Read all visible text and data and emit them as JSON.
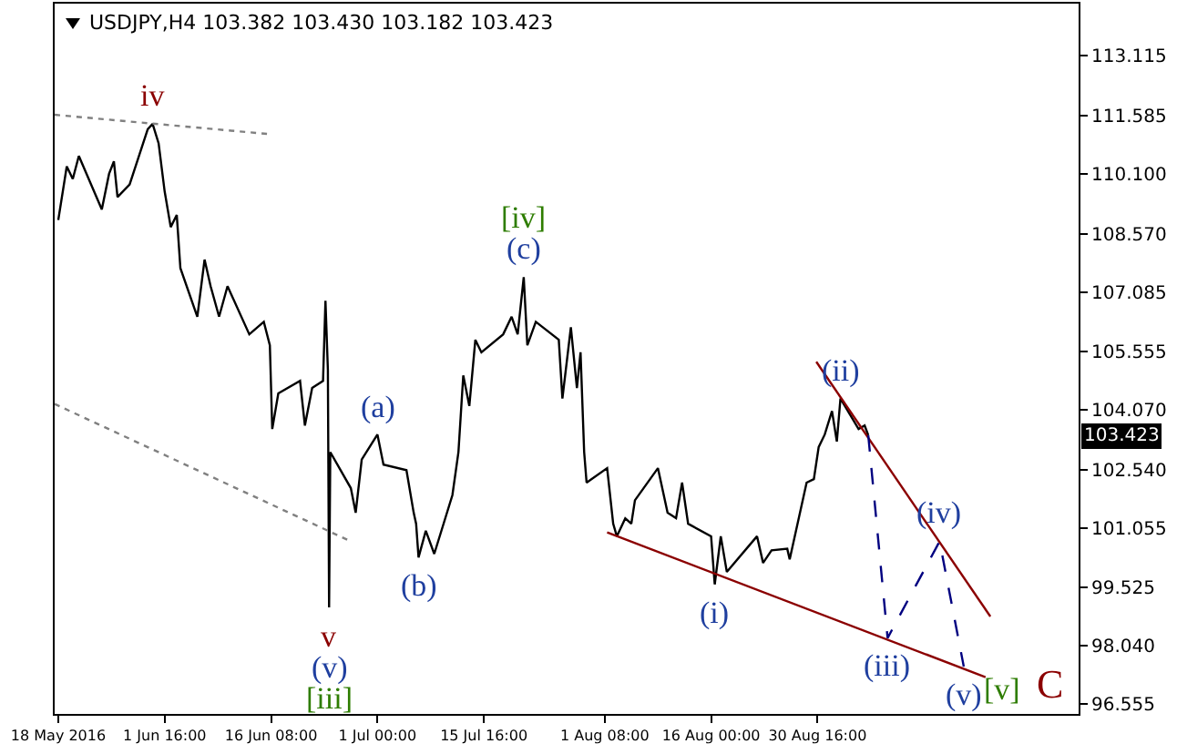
{
  "chart_data": {
    "type": "line",
    "title": "USDJPY,H4  103.382 103.430 103.182 103.423",
    "xlim": [
      "2016-05-17T12:00",
      "2016-10-05T16:00"
    ],
    "ylim": [
      96.3,
      114.45
    ],
    "xticks": [
      {
        "value": "2016-05-18T00:00",
        "label": "18 May 2016"
      },
      {
        "value": "2016-06-01T16:00",
        "label": "1 Jun 16:00"
      },
      {
        "value": "2016-06-16T08:00",
        "label": "16 Jun 08:00"
      },
      {
        "value": "2016-07-01T00:00",
        "label": "1 Jul 00:00"
      },
      {
        "value": "2016-07-15T16:00",
        "label": "15 Jul 16:00"
      },
      {
        "value": "2016-08-01T08:00",
        "label": "1 Aug 08:00"
      },
      {
        "value": "2016-08-16T00:00",
        "label": "16 Aug 00:00"
      },
      {
        "value": "2016-08-30T16:00",
        "label": "30 Aug 16:00"
      }
    ],
    "yticks": [
      {
        "value": 96.555,
        "label": "96.555"
      },
      {
        "value": 98.04,
        "label": "98.040"
      },
      {
        "value": 99.525,
        "label": "99.525"
      },
      {
        "value": 101.055,
        "label": "101.055"
      },
      {
        "value": 102.54,
        "label": "102.540"
      },
      {
        "value": 104.07,
        "label": "104.070"
      },
      {
        "value": 105.555,
        "label": "105.555"
      },
      {
        "value": 107.085,
        "label": "107.085"
      },
      {
        "value": 108.57,
        "label": "108.570"
      },
      {
        "value": 110.1,
        "label": "110.100"
      },
      {
        "value": 111.585,
        "label": "111.585"
      },
      {
        "value": 113.115,
        "label": "113.115"
      }
    ],
    "grid": false,
    "marker": "none",
    "series": [
      {
        "color": "#000000",
        "line_style": "solid",
        "x": [
          "2016-05-18T00:00",
          "2016-05-19T04:00",
          "2016-05-20T00:00",
          "2016-05-20T20:00",
          "2016-05-24T00:00",
          "2016-05-25T00:00",
          "2016-05-25T16:00",
          "2016-05-26T04:00",
          "2016-05-27T20:00",
          "2016-05-30T08:00",
          "2016-05-31T00:00",
          "2016-05-31T20:00",
          "2016-06-01T16:00",
          "2016-06-02T12:00",
          "2016-06-03T08:00",
          "2016-06-03T12:00",
          "2016-06-03T20:00",
          "2016-06-06T04:00",
          "2016-06-07T04:00",
          "2016-06-08T00:00",
          "2016-06-09T04:00",
          "2016-06-10T08:00",
          "2016-06-13T08:00",
          "2016-06-15T08:00",
          "2016-06-16T04:00",
          "2016-06-16T12:00",
          "2016-06-17T08:00",
          "2016-06-20T08:00",
          "2016-06-21T00:00",
          "2016-06-22T00:00",
          "2016-06-23T12:00",
          "2016-06-23T20:00",
          "2016-06-24T04:00",
          "2016-06-24T08:00",
          "2016-06-24T12:00",
          "2016-06-27T08:00",
          "2016-06-28T00:00",
          "2016-06-28T20:00",
          "2016-07-01T00:00",
          "2016-07-01T20:00",
          "2016-07-05T00:00",
          "2016-07-06T00:00",
          "2016-07-06T08:00",
          "2016-07-06T16:00",
          "2016-07-07T16:00",
          "2016-07-08T20:00",
          "2016-07-11T08:00",
          "2016-07-12T04:00",
          "2016-07-12T20:00",
          "2016-07-13T16:00",
          "2016-07-14T12:00",
          "2016-07-15T08:00",
          "2016-07-18T08:00",
          "2016-07-19T12:00",
          "2016-07-20T08:00",
          "2016-07-21T04:00",
          "2016-07-21T16:00",
          "2016-07-22T20:00",
          "2016-07-26T00:00",
          "2016-07-26T12:00",
          "2016-07-27T16:00",
          "2016-07-28T12:00",
          "2016-07-29T00:00",
          "2016-07-29T12:00",
          "2016-07-29T20:00",
          "2016-08-01T16:00",
          "2016-08-02T12:00",
          "2016-08-03T00:00",
          "2016-08-04T04:00",
          "2016-08-05T00:00",
          "2016-08-05T12:00",
          "2016-08-08T16:00",
          "2016-08-10T00:00",
          "2016-08-11T04:00",
          "2016-08-12T00:00",
          "2016-08-12T20:00",
          "2016-08-16T00:00",
          "2016-08-16T12:00",
          "2016-08-17T08:00",
          "2016-08-18T04:00",
          "2016-08-22T08:00",
          "2016-08-23T04:00",
          "2016-08-24T08:00",
          "2016-08-26T12:00",
          "2016-08-26T20:00",
          "2016-08-29T04:00",
          "2016-08-30T04:00",
          "2016-08-30T20:00",
          "2016-08-31T16:00",
          "2016-09-01T16:00",
          "2016-09-02T08:00",
          "2016-09-02T20:00",
          "2016-09-05T08:00",
          "2016-09-06T04:00",
          "2016-09-06T16:00"
        ],
        "values": [
          108.92,
          110.29,
          109.97,
          110.56,
          109.19,
          110.1,
          110.42,
          109.51,
          109.83,
          111.24,
          111.38,
          110.88,
          109.65,
          108.74,
          109.05,
          108.6,
          107.69,
          106.45,
          107.91,
          107.23,
          106.45,
          107.23,
          106.0,
          106.32,
          105.72,
          103.58,
          104.49,
          104.81,
          103.67,
          104.63,
          104.81,
          106.86,
          105.09,
          99.02,
          102.99,
          102.07,
          101.44,
          102.8,
          103.44,
          102.67,
          102.53,
          101.44,
          101.16,
          100.3,
          100.98,
          100.39,
          101.89,
          102.99,
          104.95,
          104.17,
          105.86,
          105.54,
          106.0,
          106.45,
          106.0,
          107.46,
          105.72,
          106.32,
          105.86,
          104.36,
          106.18,
          104.63,
          105.54,
          102.99,
          102.21,
          102.58,
          101.16,
          100.84,
          101.3,
          101.16,
          101.76,
          102.58,
          101.44,
          101.3,
          102.21,
          101.16,
          100.84,
          99.61,
          100.84,
          99.93,
          100.84,
          100.16,
          100.48,
          100.52,
          100.25,
          102.21,
          102.3,
          103.12,
          103.44,
          104.04,
          103.26,
          104.36,
          103.58,
          103.67,
          103.42
        ]
      },
      {
        "color": "#808080",
        "line_style": "dotted",
        "x": [
          "2016-05-17T12:00",
          "2016-06-16T12:00"
        ],
        "values": [
          111.61,
          111.11
        ]
      },
      {
        "color": "#808080",
        "line_style": "dotted",
        "x": [
          "2016-05-17T12:00",
          "2016-06-27T08:00"
        ],
        "values": [
          104.22,
          100.71
        ]
      },
      {
        "color": "#8b0000",
        "line_style": "solid",
        "x": [
          "2016-08-01T16:00",
          "2016-09-22T20:00"
        ],
        "values": [
          100.94,
          97.24
        ]
      },
      {
        "color": "#8b0000",
        "line_style": "solid",
        "x": [
          "2016-08-30T12:00",
          "2016-09-23T12:00"
        ],
        "values": [
          105.3,
          98.79
        ]
      },
      {
        "color": "#000080",
        "line_style": "dashed",
        "x": [
          "2016-09-06T16:00",
          "2016-09-09T08:00",
          "2016-09-16T12:00",
          "2016-09-19T20:00"
        ],
        "values": [
          103.42,
          98.24,
          100.71,
          97.51
        ]
      }
    ],
    "annotations": [
      {
        "text": "iv",
        "x": "2016-05-31T00:00",
        "y": 111.38
      },
      {
        "text": "v",
        "x": "2016-06-24T08:00",
        "y": 99.02
      },
      {
        "text": "(v)",
        "x": "2016-06-24T08:00",
        "y": 99.02
      },
      {
        "text": "[iii]",
        "x": "2016-06-24T08:00",
        "y": 99.02
      },
      {
        "text": "(a)",
        "x": "2016-07-01T00:00",
        "y": 103.44
      },
      {
        "text": "(b)",
        "x": "2016-07-06T16:00",
        "y": 100.3
      },
      {
        "text": "(c)",
        "x": "2016-07-21T04:00",
        "y": 107.46
      },
      {
        "text": "[iv]",
        "x": "2016-07-21T04:00",
        "y": 107.46
      },
      {
        "text": "(i)",
        "x": "2016-08-16T12:00",
        "y": 99.61
      },
      {
        "text": "(ii)",
        "x": "2016-09-02T20:00",
        "y": 104.36
      },
      {
        "text": "(iii)",
        "x": "2016-09-09T08:00",
        "y": 98.24
      },
      {
        "text": "(iv)",
        "x": "2016-09-16T12:00",
        "y": 100.71
      },
      {
        "text": "(v)",
        "x": "2016-09-19T20:00",
        "y": 97.51
      },
      "103.423",
      "[v]",
      "C"
    ]
  }
}
